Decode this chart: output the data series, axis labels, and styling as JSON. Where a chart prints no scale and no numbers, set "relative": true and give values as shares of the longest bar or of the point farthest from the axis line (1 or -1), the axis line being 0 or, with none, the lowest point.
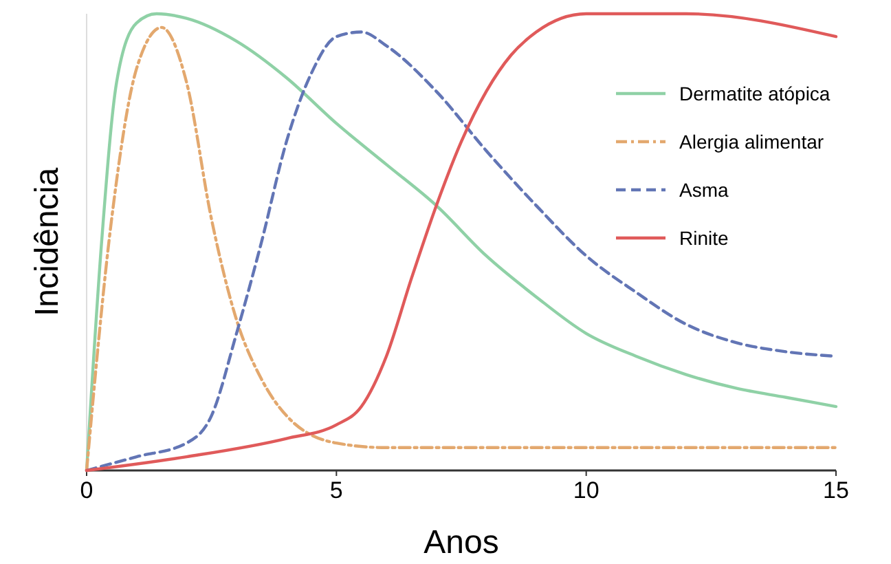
{
  "chart_data": {
    "type": "line",
    "xlabel": "Anos",
    "ylabel": "Incidência",
    "relative": true,
    "xlim": [
      0,
      15
    ],
    "xticks": [
      0,
      5,
      10,
      15
    ],
    "tick_labels": "x",
    "legend": "top right",
    "series": [
      {
        "name": "Dermatite atópica",
        "color": "#8fd1a6",
        "line_style": "solid",
        "x": [
          0,
          0.3,
          0.6,
          1,
          1.4,
          2,
          3,
          4,
          5,
          6,
          7,
          8,
          9,
          10,
          11,
          12,
          13,
          14,
          15
        ],
        "values": [
          0,
          0.5,
          0.85,
          0.98,
          1,
          0.99,
          0.94,
          0.86,
          0.76,
          0.67,
          0.58,
          0.47,
          0.38,
          0.3,
          0.25,
          0.21,
          0.18,
          0.16,
          0.14
        ]
      },
      {
        "name": "Alergia alimentar",
        "color": "#e3a86e",
        "line_style": "dashdot",
        "x": [
          0,
          0.5,
          1,
          1.5,
          2,
          2.5,
          3,
          3.5,
          4,
          5,
          6,
          8,
          10,
          15
        ],
        "values": [
          0,
          0.55,
          0.88,
          0.97,
          0.85,
          0.55,
          0.33,
          0.2,
          0.12,
          0.06,
          0.05,
          0.05,
          0.05,
          0.05
        ]
      },
      {
        "name": "Asma",
        "color": "#6275b5",
        "line_style": "dashed",
        "x": [
          0,
          1,
          2,
          2.5,
          3,
          3.5,
          4,
          4.5,
          5,
          5.5,
          6,
          7,
          8,
          9,
          10,
          11,
          12,
          13,
          14,
          15
        ],
        "values": [
          0,
          0.03,
          0.06,
          0.12,
          0.3,
          0.5,
          0.72,
          0.87,
          0.95,
          0.96,
          0.93,
          0.83,
          0.7,
          0.58,
          0.47,
          0.39,
          0.32,
          0.28,
          0.26,
          0.25
        ]
      },
      {
        "name": "Rinite",
        "color": "#e05a5a",
        "line_style": "solid",
        "x": [
          0,
          2,
          4,
          5,
          5.5,
          6,
          6.5,
          7,
          7.5,
          8,
          8.5,
          9,
          9.5,
          10,
          12,
          15
        ],
        "values": [
          0,
          0.03,
          0.07,
          0.1,
          0.14,
          0.25,
          0.42,
          0.58,
          0.72,
          0.83,
          0.91,
          0.96,
          0.99,
          1,
          1,
          0.95
        ]
      }
    ]
  }
}
